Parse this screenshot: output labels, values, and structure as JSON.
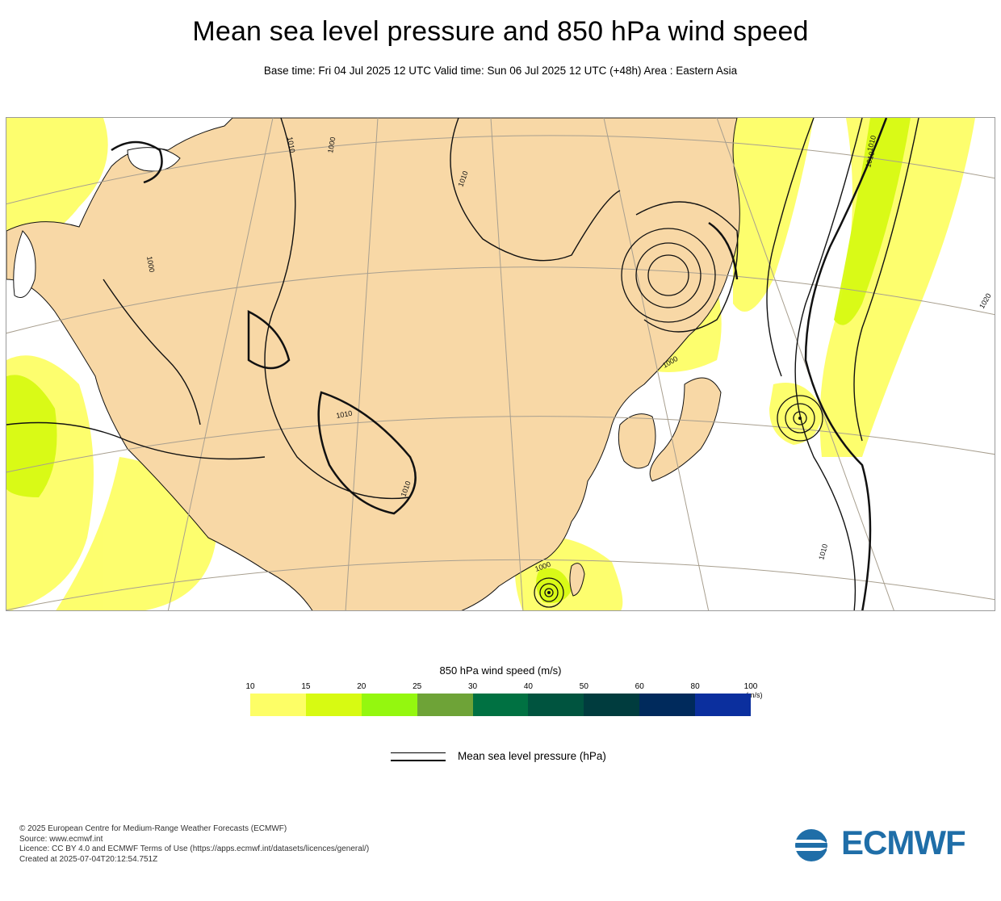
{
  "header": {
    "title": "Mean sea level pressure and 850 hPa wind speed",
    "subtitle": "Base time: Fri 04 Jul 2025 12 UTC Valid time: Sun 06 Jul 2025 12 UTC (+48h) Area : Eastern Asia"
  },
  "map": {
    "region": "Eastern Asia",
    "colors": {
      "land": "#f8d8a6",
      "ocean": "#ffffff",
      "contour": "#111111",
      "graticule": "#a89f8f"
    },
    "isobar_labels": [
      "1010",
      "1000",
      "1010",
      "1000",
      "1010",
      "1010",
      "1000",
      "1010",
      "1020",
      "1010",
      "1010",
      "1000"
    ]
  },
  "legend": {
    "wind_title": "850 hPa wind speed (m/s)",
    "units": "(m/s)",
    "ticks": [
      "10",
      "15",
      "20",
      "25",
      "30",
      "40",
      "50",
      "60",
      "80",
      "100"
    ],
    "colors": [
      "#fdfe66",
      "#d7fa12",
      "#94f70f",
      "#6ea337",
      "#007142",
      "#00543f",
      "#003c3e",
      "#002a5c",
      "#0b2f9e"
    ],
    "msl_label": "Mean sea level pressure (hPa)"
  },
  "footer": {
    "credits": [
      "© 2025 European Centre for Medium-Range Weather Forecasts (ECMWF)",
      "Source: www.ecmwf.int",
      "Licence: CC BY 4.0 and ECMWF Terms of Use (https://apps.ecmwf.int/datasets/licences/general/)",
      "Created at 2025-07-04T20:12:54.751Z"
    ],
    "logo_text": "ECMWF",
    "logo_icon": "ecmwf-logo-icon"
  }
}
